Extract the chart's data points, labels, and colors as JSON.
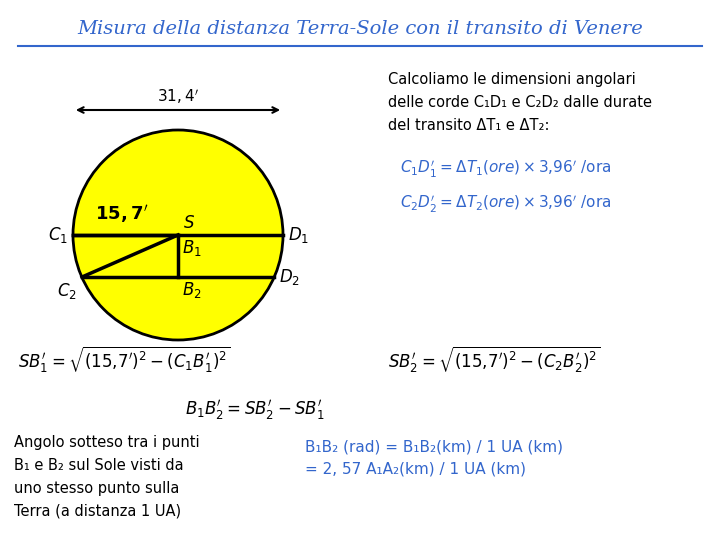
{
  "title": "Misura della distanza Terra-Sole con il transito di Venere",
  "title_color": "#3366CC",
  "background_color": "#ffffff",
  "circle_color": "#FFFF00",
  "circle_edge_color": "#000000",
  "text_black": "#000000",
  "text_blue": "#3366CC",
  "right_text_line1": "Calcoliamo le dimensioni angolari",
  "right_text_line2": "delle corde C₁D₁ e C₂D₂ dalle durate",
  "right_text_line3": "del transito ΔT₁ e ΔT₂:",
  "bottom_left_line1": "Angolo sotteso tra i punti",
  "bottom_left_line2": "B₁ e B₂ sul Sole visti da",
  "bottom_left_line3": "uno stesso punto sulla",
  "bottom_left_line4": "Terra (a distanza 1 UA)",
  "bottom_right_line1": "B₁B₂ (rad) = B₁B₂(km) / 1 UA (km)",
  "bottom_right_line2": "= 2, 57 A₁A₂(km) / 1 UA (km)"
}
